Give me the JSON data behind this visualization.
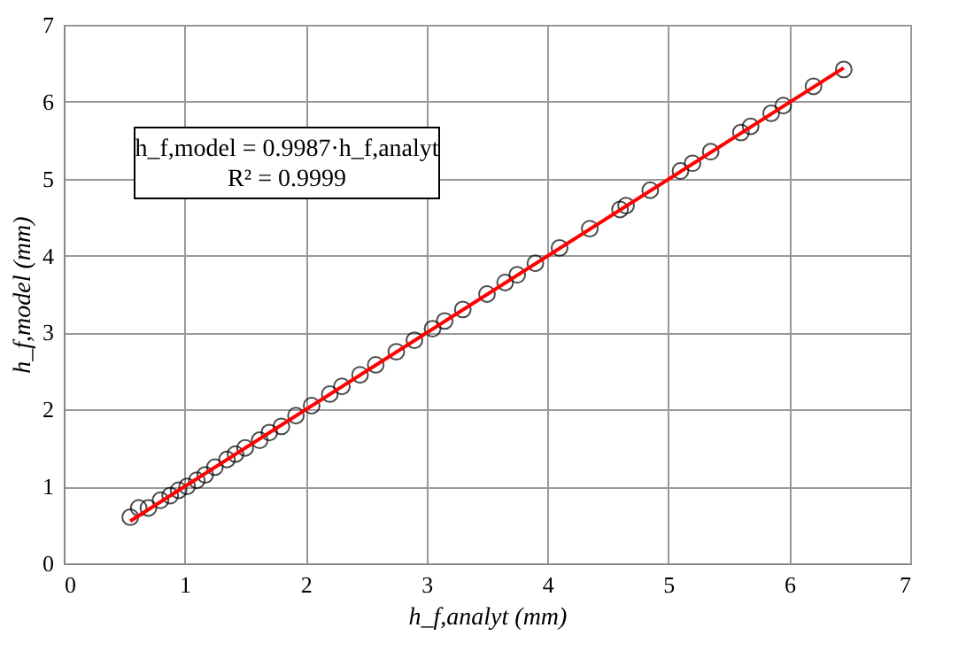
{
  "chart_data": {
    "type": "scatter",
    "xlabel": "h_f,analyt (mm)",
    "ylabel": "h_f,model (mm)",
    "xlim": [
      0,
      7
    ],
    "ylim": [
      0,
      7
    ],
    "xticks": [
      0,
      1,
      2,
      3,
      4,
      5,
      6,
      7
    ],
    "yticks": [
      0,
      1,
      2,
      3,
      4,
      5,
      6,
      7
    ],
    "grid": true,
    "annotations": [
      "h_f,model = 0.9987·h_f,analyt",
      "R² = 0.9999"
    ],
    "series": [
      {
        "marker": "circle",
        "color": "#000000",
        "x": [
          0.55,
          0.62,
          0.7,
          0.8,
          0.88,
          0.95,
          1.02,
          1.1,
          1.17,
          1.25,
          1.35,
          1.42,
          1.5,
          1.62,
          1.7,
          1.8,
          1.92,
          2.05,
          2.2,
          2.3,
          2.45,
          2.58,
          2.75,
          2.9,
          3.05,
          3.15,
          3.3,
          3.5,
          3.65,
          3.75,
          3.9,
          4.1,
          4.35,
          4.6,
          4.65,
          4.85,
          5.1,
          5.2,
          5.35,
          5.6,
          5.68,
          5.85,
          5.95,
          6.2,
          6.45
        ],
        "values": [
          0.6,
          0.72,
          0.72,
          0.82,
          0.88,
          0.95,
          1.0,
          1.08,
          1.15,
          1.25,
          1.35,
          1.42,
          1.5,
          1.6,
          1.7,
          1.78,
          1.92,
          2.05,
          2.2,
          2.3,
          2.45,
          2.58,
          2.75,
          2.9,
          3.05,
          3.15,
          3.3,
          3.5,
          3.65,
          3.75,
          3.9,
          4.1,
          4.35,
          4.6,
          4.65,
          4.85,
          5.1,
          5.2,
          5.35,
          5.6,
          5.68,
          5.85,
          5.95,
          6.2,
          6.42
        ]
      },
      {
        "type": "line",
        "color": "#ff0000",
        "x": [
          0.55,
          6.45
        ],
        "values": [
          0.55,
          6.44
        ]
      }
    ]
  }
}
